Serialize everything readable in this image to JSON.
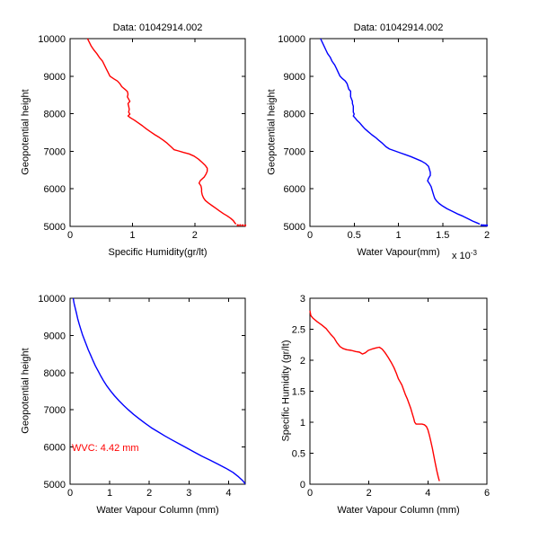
{
  "figure": {
    "background": "#ffffff",
    "axis_color": "#000000"
  },
  "chart_data": [
    {
      "id": "top-left",
      "type": "line",
      "title": "Data: 01042914.002",
      "xlabel": "Specific Humidity(gr/lt)",
      "ylabel": "Geopotential height",
      "series_name": "specific-humidity-profile",
      "color": "#ff0000",
      "xlim": [
        0,
        2.81
      ],
      "ylim": [
        5000,
        10000
      ],
      "xticks": [
        0,
        1,
        2
      ],
      "xtick_labels": [
        "0",
        "1",
        "2"
      ],
      "yticks": [
        5000,
        6000,
        7000,
        8000,
        9000,
        10000
      ],
      "ytick_labels": [
        "5000",
        "6000",
        "7000",
        "8000",
        "9000",
        "10000"
      ],
      "grid": false,
      "points": [
        [
          0.28,
          10000
        ],
        [
          0.31,
          9900
        ],
        [
          0.34,
          9800
        ],
        [
          0.38,
          9700
        ],
        [
          0.43,
          9600
        ],
        [
          0.47,
          9500
        ],
        [
          0.52,
          9400
        ],
        [
          0.55,
          9300
        ],
        [
          0.58,
          9200
        ],
        [
          0.61,
          9100
        ],
        [
          0.64,
          9000
        ],
        [
          0.7,
          8930
        ],
        [
          0.76,
          8870
        ],
        [
          0.8,
          8800
        ],
        [
          0.83,
          8720
        ],
        [
          0.88,
          8650
        ],
        [
          0.92,
          8590
        ],
        [
          0.93,
          8520
        ],
        [
          0.92,
          8450
        ],
        [
          0.94,
          8390
        ],
        [
          0.96,
          8330
        ],
        [
          0.93,
          8270
        ],
        [
          0.94,
          8200
        ],
        [
          0.95,
          8120
        ],
        [
          0.94,
          8040
        ],
        [
          0.96,
          7990
        ],
        [
          0.93,
          7940
        ],
        [
          0.97,
          7890
        ],
        [
          1.03,
          7830
        ],
        [
          1.09,
          7760
        ],
        [
          1.16,
          7680
        ],
        [
          1.22,
          7600
        ],
        [
          1.29,
          7520
        ],
        [
          1.36,
          7440
        ],
        [
          1.43,
          7370
        ],
        [
          1.5,
          7290
        ],
        [
          1.56,
          7210
        ],
        [
          1.62,
          7120
        ],
        [
          1.67,
          7040
        ],
        [
          1.74,
          7010
        ],
        [
          1.82,
          6970
        ],
        [
          1.91,
          6930
        ],
        [
          1.99,
          6870
        ],
        [
          2.06,
          6790
        ],
        [
          2.12,
          6700
        ],
        [
          2.17,
          6620
        ],
        [
          2.2,
          6550
        ],
        [
          2.2,
          6470
        ],
        [
          2.18,
          6390
        ],
        [
          2.15,
          6310
        ],
        [
          2.09,
          6220
        ],
        [
          2.07,
          6150
        ],
        [
          2.1,
          6080
        ],
        [
          2.11,
          6000
        ],
        [
          2.11,
          5920
        ],
        [
          2.12,
          5840
        ],
        [
          2.14,
          5760
        ],
        [
          2.17,
          5690
        ],
        [
          2.22,
          5620
        ],
        [
          2.28,
          5550
        ],
        [
          2.34,
          5480
        ],
        [
          2.4,
          5410
        ],
        [
          2.46,
          5340
        ],
        [
          2.52,
          5280
        ],
        [
          2.58,
          5210
        ],
        [
          2.62,
          5150
        ],
        [
          2.64,
          5100
        ],
        [
          2.66,
          5060
        ]
      ],
      "tail_dots": [
        [
          2.69,
          5032
        ],
        [
          2.73,
          5030
        ],
        [
          2.77,
          5028
        ],
        [
          2.81,
          5027
        ]
      ]
    },
    {
      "id": "top-right",
      "type": "line",
      "title": "Data: 01042914.002",
      "xlabel": "Water Vapour(mm)",
      "x_exponent": {
        "prefix": "x 10",
        "sup": "-3"
      },
      "ylabel": "Geopotential height",
      "series_name": "water-vapour-profile",
      "color": "#0000ff",
      "xlim": [
        0,
        0.002
      ],
      "ylim": [
        5000,
        10000
      ],
      "xticks": [
        0,
        0.0005,
        0.001,
        0.0015,
        0.002
      ],
      "xtick_labels": [
        "0",
        "0.5",
        "1",
        "1.5",
        "2"
      ],
      "yticks": [
        5000,
        6000,
        7000,
        8000,
        9000,
        10000
      ],
      "ytick_labels": [
        "5000",
        "6000",
        "7000",
        "8000",
        "9000",
        "10000"
      ],
      "grid": false,
      "points": [
        [
          0.00012,
          10000
        ],
        [
          0.00014,
          9900
        ],
        [
          0.00016,
          9800
        ],
        [
          0.00018,
          9700
        ],
        [
          0.0002,
          9600
        ],
        [
          0.00023,
          9500
        ],
        [
          0.00025,
          9400
        ],
        [
          0.00028,
          9300
        ],
        [
          0.0003,
          9200
        ],
        [
          0.00032,
          9100
        ],
        [
          0.00034,
          9000
        ],
        [
          0.00037,
          8930
        ],
        [
          0.0004,
          8870
        ],
        [
          0.00042,
          8800
        ],
        [
          0.00043,
          8720
        ],
        [
          0.00044,
          8650
        ],
        [
          0.00046,
          8600
        ],
        [
          0.00046,
          8520
        ],
        [
          0.00046,
          8450
        ],
        [
          0.00047,
          8390
        ],
        [
          0.00048,
          8330
        ],
        [
          0.00048,
          8270
        ],
        [
          0.00049,
          8200
        ],
        [
          0.00049,
          8120
        ],
        [
          0.00049,
          8040
        ],
        [
          0.0005,
          7990
        ],
        [
          0.00049,
          7940
        ],
        [
          0.00051,
          7890
        ],
        [
          0.00053,
          7830
        ],
        [
          0.00056,
          7760
        ],
        [
          0.00059,
          7680
        ],
        [
          0.00062,
          7600
        ],
        [
          0.00066,
          7520
        ],
        [
          0.0007,
          7440
        ],
        [
          0.00074,
          7370
        ],
        [
          0.00078,
          7290
        ],
        [
          0.00082,
          7210
        ],
        [
          0.00086,
          7120
        ],
        [
          0.0009,
          7060
        ],
        [
          0.00096,
          7010
        ],
        [
          0.00102,
          6960
        ],
        [
          0.00108,
          6910
        ],
        [
          0.00114,
          6860
        ],
        [
          0.0012,
          6800
        ],
        [
          0.00126,
          6740
        ],
        [
          0.00131,
          6670
        ],
        [
          0.00134,
          6600
        ],
        [
          0.00135,
          6520
        ],
        [
          0.00136,
          6440
        ],
        [
          0.00136,
          6360
        ],
        [
          0.00134,
          6280
        ],
        [
          0.00133,
          6210
        ],
        [
          0.00135,
          6140
        ],
        [
          0.00137,
          6060
        ],
        [
          0.00138,
          5980
        ],
        [
          0.00139,
          5900
        ],
        [
          0.0014,
          5820
        ],
        [
          0.00141,
          5750
        ],
        [
          0.00143,
          5680
        ],
        [
          0.00146,
          5610
        ],
        [
          0.0015,
          5540
        ],
        [
          0.00155,
          5470
        ],
        [
          0.00161,
          5400
        ],
        [
          0.00167,
          5330
        ],
        [
          0.00173,
          5270
        ],
        [
          0.00179,
          5200
        ],
        [
          0.00184,
          5140
        ],
        [
          0.00189,
          5090
        ],
        [
          0.00192,
          5060
        ]
      ],
      "tail_dots": [
        [
          0.00194,
          5030
        ],
        [
          0.00196,
          5028
        ],
        [
          0.00198,
          5027
        ],
        [
          0.002,
          5026
        ]
      ]
    },
    {
      "id": "bottom-left",
      "type": "line",
      "title": "",
      "xlabel": "Water Vapour Column (mm)",
      "ylabel": "Geopotential height",
      "series_name": "water-vapour-column-profile",
      "color": "#0000ff",
      "annotation": {
        "text": "WVC: 4.42 mm",
        "color": "#ff0000",
        "x": 0.05,
        "y": 6000
      },
      "xlim": [
        0,
        4.42
      ],
      "ylim": [
        5000,
        10000
      ],
      "xticks": [
        0,
        1,
        2,
        3,
        4
      ],
      "xtick_labels": [
        "0",
        "1",
        "2",
        "3",
        "4"
      ],
      "yticks": [
        5000,
        6000,
        7000,
        8000,
        9000,
        10000
      ],
      "ytick_labels": [
        "5000",
        "6000",
        "7000",
        "8000",
        "9000",
        "10000"
      ],
      "grid": false,
      "points": [
        [
          0.08,
          10000
        ],
        [
          0.1,
          9870
        ],
        [
          0.13,
          9740
        ],
        [
          0.16,
          9600
        ],
        [
          0.19,
          9460
        ],
        [
          0.23,
          9310
        ],
        [
          0.27,
          9170
        ],
        [
          0.31,
          9030
        ],
        [
          0.36,
          8890
        ],
        [
          0.41,
          8750
        ],
        [
          0.46,
          8610
        ],
        [
          0.52,
          8470
        ],
        [
          0.58,
          8320
        ],
        [
          0.64,
          8180
        ],
        [
          0.71,
          8040
        ],
        [
          0.78,
          7900
        ],
        [
          0.85,
          7770
        ],
        [
          0.93,
          7640
        ],
        [
          1.02,
          7510
        ],
        [
          1.12,
          7380
        ],
        [
          1.23,
          7250
        ],
        [
          1.35,
          7120
        ],
        [
          1.47,
          7000
        ],
        [
          1.6,
          6880
        ],
        [
          1.74,
          6760
        ],
        [
          1.89,
          6640
        ],
        [
          2.05,
          6520
        ],
        [
          2.22,
          6410
        ],
        [
          2.39,
          6300
        ],
        [
          2.57,
          6190
        ],
        [
          2.76,
          6080
        ],
        [
          2.95,
          5970
        ],
        [
          3.14,
          5860
        ],
        [
          3.33,
          5750
        ],
        [
          3.53,
          5650
        ],
        [
          3.73,
          5540
        ],
        [
          3.93,
          5430
        ],
        [
          4.11,
          5320
        ],
        [
          4.25,
          5200
        ],
        [
          4.36,
          5090
        ],
        [
          4.42,
          5010
        ]
      ],
      "tail_dots": []
    },
    {
      "id": "bottom-right",
      "type": "line",
      "title": "",
      "xlabel": "Water Vapour Column (mm)",
      "ylabel": "Specific Humidity (gr/lt)",
      "series_name": "humidity-vs-column",
      "color": "#ff0000",
      "xlim": [
        0,
        6
      ],
      "ylim": [
        0,
        3
      ],
      "xticks": [
        0,
        2,
        4,
        6
      ],
      "xtick_labels": [
        "0",
        "2",
        "4",
        "6"
      ],
      "yticks": [
        0,
        0.5,
        1,
        1.5,
        2,
        2.5,
        3
      ],
      "ytick_labels": [
        "0",
        "0.5",
        "1",
        "1.5",
        "2",
        "2.5",
        "3"
      ],
      "grid": false,
      "points": [
        [
          0.0,
          2.8
        ],
        [
          0.03,
          2.72
        ],
        [
          0.1,
          2.68
        ],
        [
          0.25,
          2.62
        ],
        [
          0.4,
          2.57
        ],
        [
          0.55,
          2.51
        ],
        [
          0.7,
          2.42
        ],
        [
          0.82,
          2.36
        ],
        [
          0.92,
          2.28
        ],
        [
          1.02,
          2.22
        ],
        [
          1.12,
          2.19
        ],
        [
          1.25,
          2.17
        ],
        [
          1.4,
          2.16
        ],
        [
          1.55,
          2.14
        ],
        [
          1.68,
          2.13
        ],
        [
          1.78,
          2.1
        ],
        [
          1.88,
          2.12
        ],
        [
          1.98,
          2.16
        ],
        [
          2.1,
          2.18
        ],
        [
          2.25,
          2.2
        ],
        [
          2.35,
          2.21
        ],
        [
          2.45,
          2.18
        ],
        [
          2.55,
          2.12
        ],
        [
          2.65,
          2.05
        ],
        [
          2.75,
          1.97
        ],
        [
          2.85,
          1.88
        ],
        [
          2.93,
          1.79
        ],
        [
          3.0,
          1.7
        ],
        [
          3.06,
          1.65
        ],
        [
          3.12,
          1.6
        ],
        [
          3.18,
          1.52
        ],
        [
          3.24,
          1.44
        ],
        [
          3.3,
          1.38
        ],
        [
          3.36,
          1.3
        ],
        [
          3.42,
          1.22
        ],
        [
          3.47,
          1.14
        ],
        [
          3.52,
          1.06
        ],
        [
          3.55,
          1.0
        ],
        [
          3.6,
          0.97
        ],
        [
          3.7,
          0.97
        ],
        [
          3.8,
          0.97
        ],
        [
          3.88,
          0.96
        ],
        [
          3.95,
          0.93
        ],
        [
          4.0,
          0.88
        ],
        [
          4.05,
          0.79
        ],
        [
          4.1,
          0.69
        ],
        [
          4.15,
          0.58
        ],
        [
          4.2,
          0.46
        ],
        [
          4.25,
          0.34
        ],
        [
          4.3,
          0.22
        ],
        [
          4.35,
          0.12
        ],
        [
          4.39,
          0.05
        ]
      ],
      "tail_dots": []
    }
  ]
}
